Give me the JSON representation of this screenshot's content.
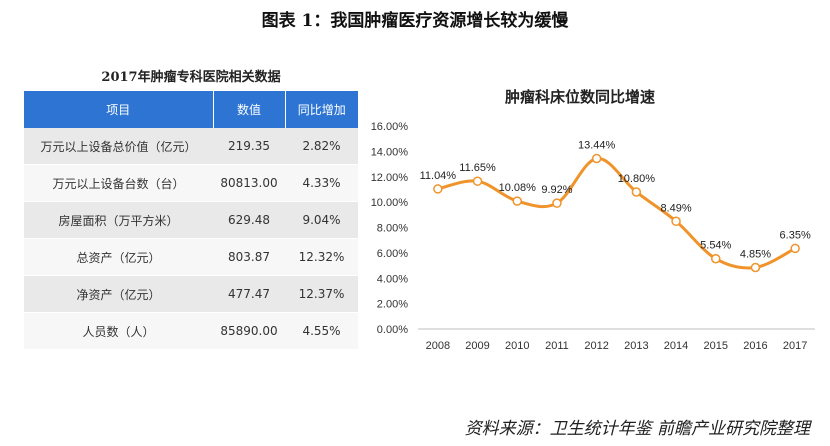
{
  "figure_title": "图表 1：我国肿瘤医疗资源增长较为缓慢",
  "table": {
    "title": "2017年肿瘤专科医院相关数据",
    "headers": [
      "项目",
      "数值",
      "同比增加"
    ],
    "rows": [
      [
        "万元以上设备总价值（亿元）",
        "219.35",
        "2.82%"
      ],
      [
        "万元以上设备台数（台）",
        "80813.00",
        "4.33%"
      ],
      [
        "房屋面积（万平方米）",
        "629.48",
        "9.04%"
      ],
      [
        "总资产（亿元）",
        "803.87",
        "12.32%"
      ],
      [
        "净资产（亿元）",
        "477.47",
        "12.37%"
      ],
      [
        "人员数（人）",
        "85890.00",
        "4.55%"
      ]
    ]
  },
  "chart_data": {
    "type": "line",
    "title": "肿瘤科床位数同比增速",
    "x": [
      "2008",
      "2009",
      "2010",
      "2011",
      "2012",
      "2013",
      "2014",
      "2015",
      "2016",
      "2017"
    ],
    "series": [
      {
        "values": [
          11.04,
          11.65,
          10.08,
          9.92,
          13.44,
          10.8,
          8.49,
          5.54,
          4.85,
          6.35
        ]
      }
    ],
    "data_labels": [
      "11.04%",
      "11.65%",
      "10.08%",
      "9.92%",
      "13.44%",
      "10.80%",
      "8.49%",
      "5.54%",
      "4.85%",
      "6.35%"
    ],
    "y_ticks": [
      "0.00%",
      "2.00%",
      "4.00%",
      "6.00%",
      "8.00%",
      "10.00%",
      "12.00%",
      "14.00%",
      "16.00%"
    ],
    "ylim": [
      0,
      16
    ],
    "grid": false,
    "line_color": "#f0932b",
    "marker_fill": "#ffffff"
  },
  "source": "资料来源：卫生统计年鉴 前瞻产业研究院整理"
}
